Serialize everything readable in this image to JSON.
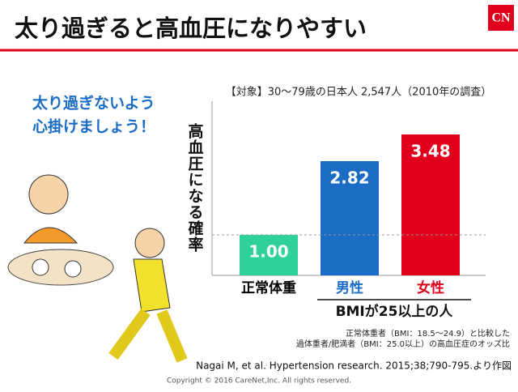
{
  "slide": {
    "title": "太り過ぎると高血圧になりやすい",
    "message": [
      "太り過ぎないよう",
      "心掛けましょう！"
    ],
    "notes": [
      "正常体重者（BMI：18.5～24.9）と比較した",
      "過体重者/肥満者（BMI：25.0以上）の高血圧症のオッズ比"
    ],
    "citation": "Nagai M, et al. Hypertension research. 2015;38;790-795.より作図",
    "copyright": "Copyright © 2016 CareNet,Inc. All rights reserved.",
    "logo": "CN"
  },
  "chart_data": {
    "type": "bar",
    "title": "【対象】30～79歳の日本人 2,547人（2010年の調査）",
    "y_label": "高血圧になる確率",
    "categories": [
      "正常体重",
      "男性",
      "女性"
    ],
    "category_colors": [
      "#000000",
      "#1a6cc4",
      "#e0001b"
    ],
    "values": [
      1.0,
      2.82,
      3.48
    ],
    "value_labels": [
      "1.00",
      "2.82",
      "3.48"
    ],
    "colors": [
      "#2ed19b",
      "#1a6cc4",
      "#e0001b"
    ],
    "group_label": "BMIが25以上の人",
    "reference_line": 1,
    "ylim": [
      0,
      4.3
    ]
  }
}
